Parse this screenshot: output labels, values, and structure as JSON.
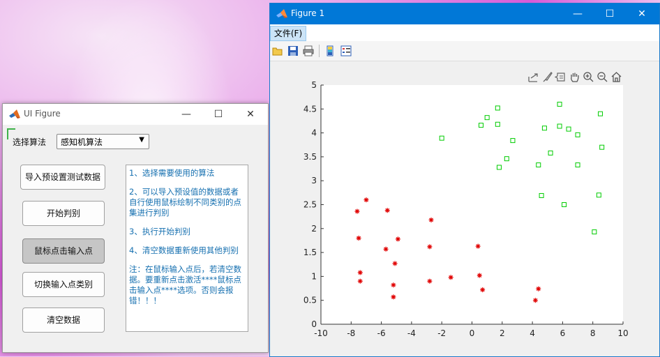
{
  "ui_figure": {
    "title": "UI Figure",
    "algo_label": "选择算法",
    "algo_value": "感知机算法",
    "buttons": {
      "import": "导入预设置测试数据",
      "start": "开始判别",
      "mouse_input": "鼠标点击输入点",
      "switch_class": "切换输入点类别",
      "clear": "清空数据"
    },
    "info": {
      "step1": "1、选择需要使用的算法",
      "step2": "2、可以导入预设值的数据或者自行使用鼠标绘制不同类别的点集进行判别",
      "step3": "3、执行开始判别",
      "step4": "4、清空数据重新使用其他判别",
      "note": "注：在鼠标输入点后，若清空数据。要重新点击激活****鼠标点击输入点****选项。否则会报错！！！"
    }
  },
  "figure": {
    "title": "Figure 1",
    "menu_file": "文件(F)"
  },
  "chart_data": {
    "type": "scatter",
    "xlim": [
      -10,
      10
    ],
    "ylim": [
      0,
      5
    ],
    "x_ticks": [
      -10,
      -8,
      -6,
      -4,
      -2,
      0,
      2,
      4,
      6,
      8,
      10
    ],
    "y_ticks": [
      0,
      0.5,
      1,
      1.5,
      2,
      2.5,
      3,
      3.5,
      4,
      4.5,
      5
    ],
    "grid": false,
    "series": [
      {
        "marker": "asterisk",
        "color": "#e00000",
        "points": [
          [
            -7.0,
            2.6
          ],
          [
            -7.6,
            2.36
          ],
          [
            -5.6,
            2.38
          ],
          [
            -2.7,
            2.18
          ],
          [
            -7.5,
            1.8
          ],
          [
            -4.9,
            1.78
          ],
          [
            -5.7,
            1.57
          ],
          [
            -2.8,
            1.62
          ],
          [
            0.4,
            1.63
          ],
          [
            -5.1,
            1.27
          ],
          [
            -7.4,
            1.08
          ],
          [
            -1.4,
            0.98
          ],
          [
            0.5,
            1.02
          ],
          [
            -7.4,
            0.9
          ],
          [
            -2.8,
            0.9
          ],
          [
            -5.2,
            0.82
          ],
          [
            0.7,
            0.72
          ],
          [
            4.4,
            0.74
          ],
          [
            -5.2,
            0.57
          ],
          [
            4.2,
            0.5
          ]
        ]
      },
      {
        "marker": "square",
        "color": "#00cc00",
        "points": [
          [
            5.8,
            4.6
          ],
          [
            1.7,
            4.52
          ],
          [
            8.5,
            4.4
          ],
          [
            1.0,
            4.32
          ],
          [
            0.6,
            4.16
          ],
          [
            1.7,
            4.18
          ],
          [
            4.8,
            4.1
          ],
          [
            5.8,
            4.14
          ],
          [
            6.4,
            4.08
          ],
          [
            7.0,
            3.96
          ],
          [
            -2.0,
            3.89
          ],
          [
            2.7,
            3.84
          ],
          [
            8.6,
            3.7
          ],
          [
            5.2,
            3.58
          ],
          [
            2.3,
            3.46
          ],
          [
            4.4,
            3.33
          ],
          [
            7.0,
            3.33
          ],
          [
            1.8,
            3.28
          ],
          [
            4.6,
            2.69
          ],
          [
            8.4,
            2.7
          ],
          [
            6.1,
            2.5
          ],
          [
            8.1,
            1.93
          ]
        ]
      }
    ]
  }
}
